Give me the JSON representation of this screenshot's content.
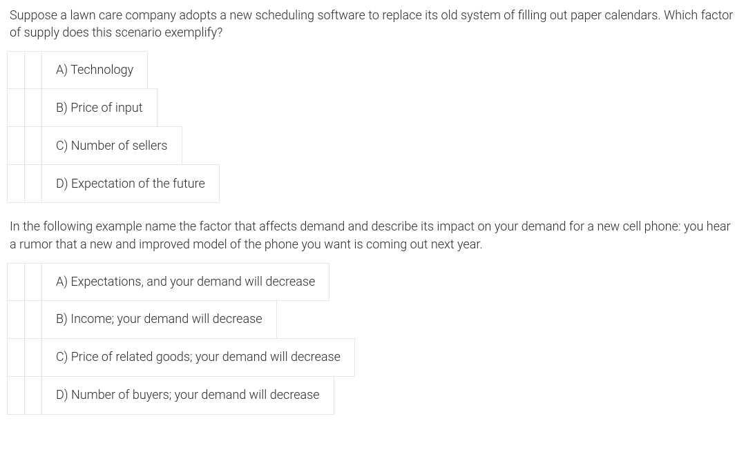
{
  "question1": {
    "text": "Suppose a lawn care company adopts a new scheduling software to replace its old system of filling out paper calendars. Which factor of supply does this scenario exemplify?",
    "options": [
      "A) Technology",
      "B) Price of input",
      "C) Number of sellers",
      "D) Expectation of the future"
    ]
  },
  "question2": {
    "text": "In the following example name the factor that affects demand and describe its impact on your demand for a new cell phone: you hear a rumor that a new and improved model of the phone you want is coming out next year.",
    "options": [
      "A) Expectations, and your demand will decrease",
      "B) Income; your demand will decrease",
      "C) Price of related goods; your demand will decrease",
      "D) Number of buyers; your demand will decrease"
    ]
  }
}
